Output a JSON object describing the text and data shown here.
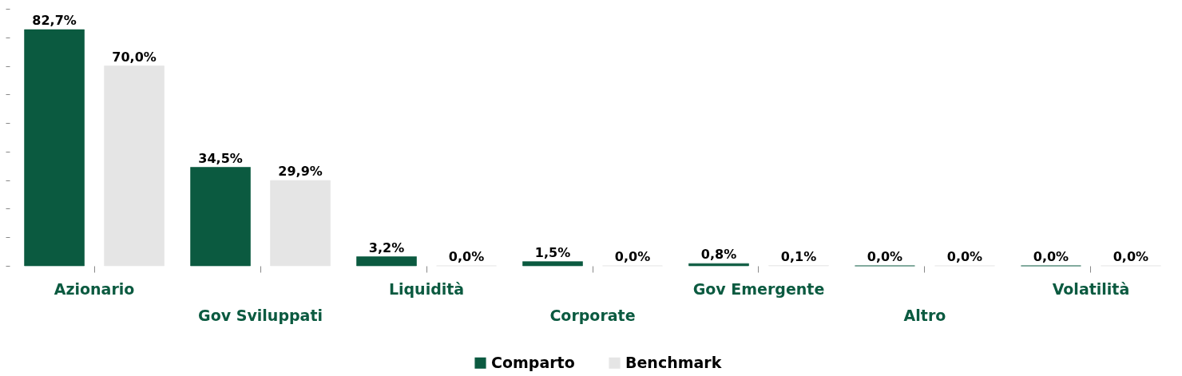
{
  "chart_data": {
    "type": "bar",
    "categories": [
      "Azionario",
      "Gov Sviluppati",
      "Liquidità",
      "Corporate",
      "Gov Emergente",
      "Altro",
      "Volatilità"
    ],
    "series": [
      {
        "name": "Comparto",
        "color": "#0b5a40",
        "values": [
          82.7,
          34.5,
          3.2,
          1.5,
          0.8,
          0.0,
          0.0
        ],
        "value_labels": [
          "82,7%",
          "34,5%",
          "3,2%",
          "1,5%",
          "0,8%",
          "0,0%",
          "0,0%"
        ]
      },
      {
        "name": "Benchmark",
        "color": "#e5e5e5",
        "values": [
          70.0,
          29.9,
          0.0,
          0.0,
          0.1,
          0.0,
          0.0
        ],
        "value_labels": [
          "70,0%",
          "29,9%",
          "0,0%",
          "0,0%",
          "0,1%",
          "0,0%",
          "0,0%"
        ]
      }
    ],
    "tick_labels": "x",
    "grid": false,
    "legend": "bottom"
  }
}
